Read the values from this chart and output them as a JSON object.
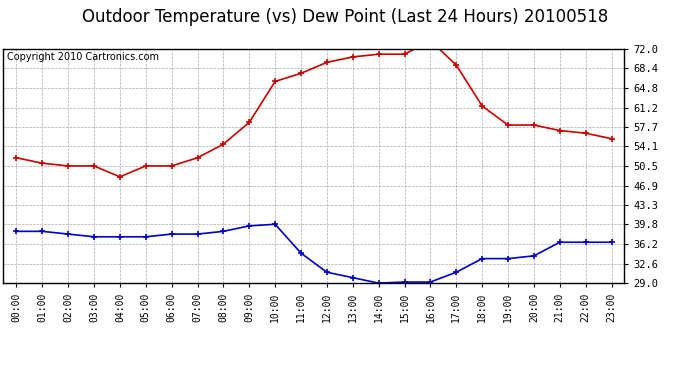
{
  "title": "Outdoor Temperature (vs) Dew Point (Last 24 Hours) 20100518",
  "copyright": "Copyright 2010 Cartronics.com",
  "hours": [
    "00:00",
    "01:00",
    "02:00",
    "03:00",
    "04:00",
    "05:00",
    "06:00",
    "07:00",
    "08:00",
    "09:00",
    "10:00",
    "11:00",
    "12:00",
    "13:00",
    "14:00",
    "15:00",
    "16:00",
    "17:00",
    "18:00",
    "19:00",
    "20:00",
    "21:00",
    "22:00",
    "23:00"
  ],
  "temp": [
    52.0,
    51.0,
    50.5,
    50.5,
    48.5,
    50.5,
    50.5,
    52.0,
    54.5,
    58.5,
    66.0,
    67.5,
    69.5,
    70.5,
    71.0,
    71.0,
    73.5,
    69.0,
    61.5,
    58.0,
    58.0,
    57.0,
    56.5,
    55.5
  ],
  "dew": [
    38.5,
    38.5,
    38.0,
    37.5,
    37.5,
    37.5,
    38.0,
    38.0,
    38.5,
    39.5,
    39.8,
    34.5,
    31.0,
    30.0,
    29.0,
    29.2,
    29.2,
    31.0,
    33.5,
    33.5,
    34.0,
    36.5,
    36.5,
    36.5
  ],
  "ylim": [
    29.0,
    72.0
  ],
  "yticks": [
    29.0,
    32.6,
    36.2,
    39.8,
    43.3,
    46.9,
    50.5,
    54.1,
    57.7,
    61.2,
    64.8,
    68.4,
    72.0
  ],
  "temp_color": "#cc0000",
  "dew_color": "#0000cc",
  "grid_color": "#aaaaaa",
  "bg_color": "#ffffff",
  "plot_bg": "#ffffff",
  "title_fontsize": 12,
  "copyright_fontsize": 7
}
